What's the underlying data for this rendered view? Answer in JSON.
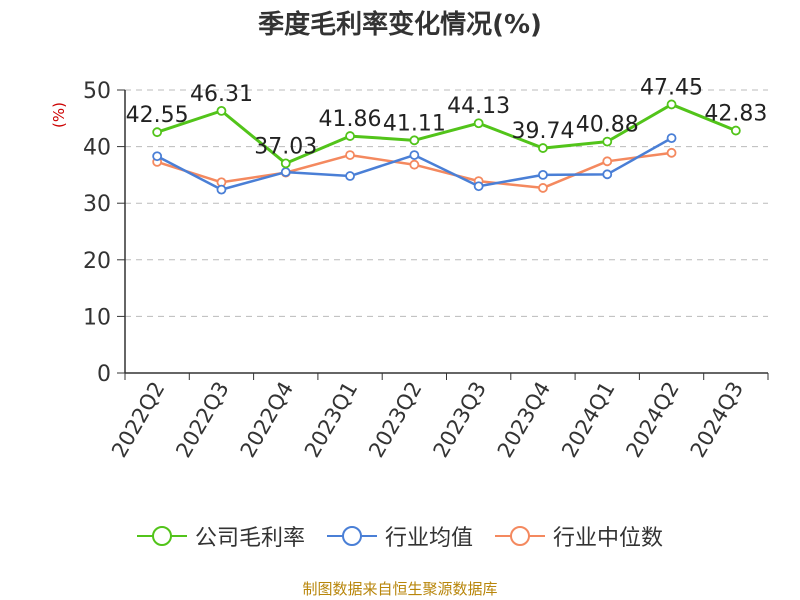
{
  "chart_data": {
    "type": "line",
    "title": "季度毛利率变化情况(%)",
    "ylabel": "(%)",
    "xlabel": "",
    "categories": [
      "2022Q2",
      "2022Q3",
      "2022Q4",
      "2023Q1",
      "2023Q2",
      "2023Q3",
      "2023Q4",
      "2024Q1",
      "2024Q2",
      "2024Q3"
    ],
    "ylim": [
      0,
      50
    ],
    "yticks": [
      0,
      10,
      20,
      30,
      40,
      50
    ],
    "grid": true,
    "legend_position": "bottom",
    "series": [
      {
        "name": "公司毛利率",
        "color": "#52c41a",
        "labeled": true,
        "values": [
          42.55,
          46.31,
          37.03,
          41.86,
          41.11,
          44.13,
          39.74,
          40.88,
          47.45,
          42.83
        ]
      },
      {
        "name": "行业均值",
        "color": "#4a7fd6",
        "labeled": false,
        "values": [
          38.3,
          32.4,
          35.5,
          34.8,
          38.5,
          33.0,
          35.0,
          35.1,
          41.5,
          null
        ]
      },
      {
        "name": "行业中位数",
        "color": "#f4895f",
        "labeled": false,
        "values": [
          37.3,
          33.7,
          35.4,
          38.5,
          36.8,
          33.9,
          32.7,
          37.4,
          38.9,
          null
        ]
      }
    ]
  },
  "source": "制图数据来自恒生聚源数据库"
}
